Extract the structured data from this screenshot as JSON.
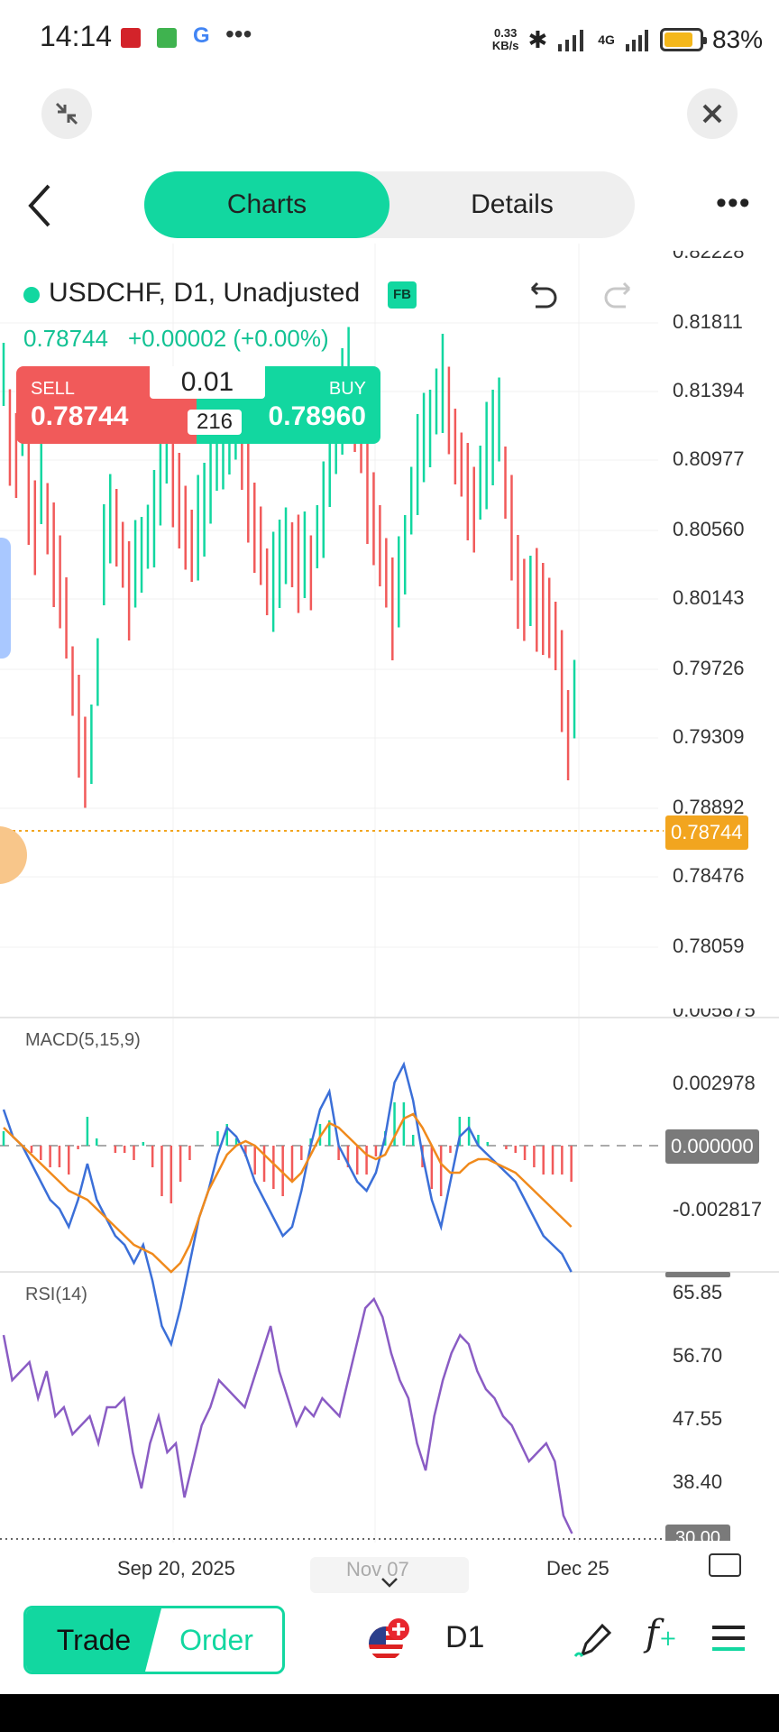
{
  "status_bar": {
    "time": "14:14",
    "speed_value": "0.33",
    "speed_unit": "KB/s",
    "network": "4G",
    "battery": "83%"
  },
  "tabs": {
    "charts": "Charts",
    "details": "Details"
  },
  "symbol": {
    "title": "USDCHF, D1, Unadjusted",
    "badge": "FB",
    "last_price": "0.78744",
    "change": "+0.00002 (+0.00%)"
  },
  "trade_panel": {
    "sell_label": "SELL",
    "sell_price": "0.78744",
    "buy_label": "BUY",
    "buy_price": "0.78960",
    "lot": "0.01",
    "spread": "216"
  },
  "price_axis": [
    "0.82228",
    "0.81811",
    "0.81394",
    "0.80977",
    "0.80560",
    "0.80143",
    "0.79726",
    "0.79309",
    "0.78892",
    "0.78476",
    "0.78059"
  ],
  "current_price_tag": "0.78744",
  "macd": {
    "label": "MACD(5,15,9)",
    "axis": [
      "0.005875",
      "0.002978",
      "-0.002817"
    ],
    "zero_tag": "0.000000"
  },
  "rsi": {
    "label": "RSI(14)",
    "axis": [
      "65.85",
      "56.70",
      "47.55",
      "38.40"
    ],
    "bottom_tag": "30.00"
  },
  "date_axis": [
    "Sep 20, 2025",
    "Nov 07",
    "Dec 25"
  ],
  "bottom_nav": {
    "trade": "Trade",
    "order": "Order",
    "timeframe": "D1"
  },
  "colors": {
    "accent": "#12d7a0",
    "down": "#f15a5a",
    "macd_line": "#3b6fd8",
    "signal_line": "#f08a1c",
    "rsi_line": "#8a5cc4",
    "price_tag": "#f2a51f"
  }
}
